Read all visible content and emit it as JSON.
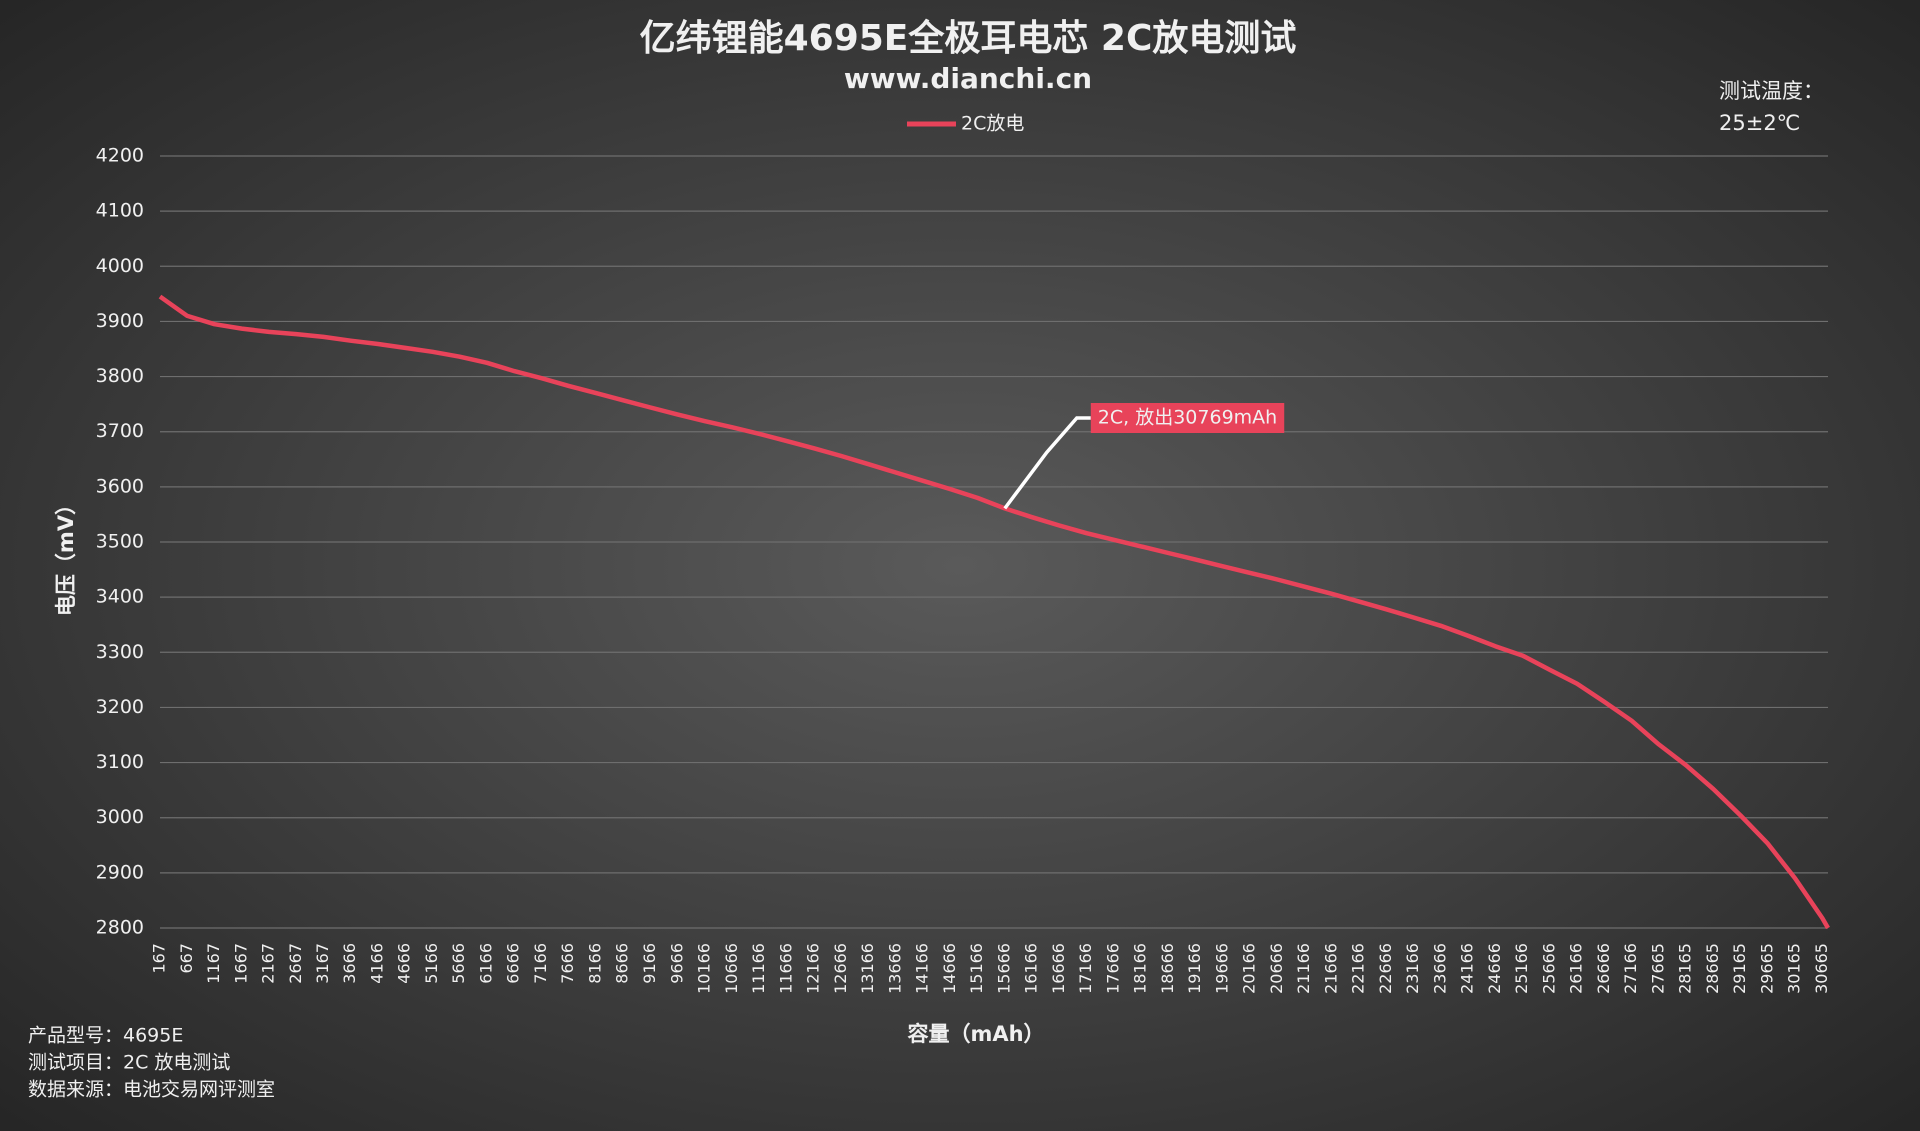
{
  "chart_data": {
    "type": "line",
    "title": "亿纬锂能4695E全极耳电芯 2C放电测试",
    "subtitle": "www.dianchi.cn",
    "x_label": "容量（mAh）",
    "y_label": "电压（mV）",
    "temperature": [
      "测试温度：",
      "25±2℃"
    ],
    "info": [
      "产品型号：4695E",
      "测试项目：2C 放电测试",
      "数据来源：电池交易网评测室"
    ],
    "annotation": "2C, 放出30769mAh",
    "annotation_index": 31,
    "grid": true,
    "legend": "top",
    "xlim": [
      167,
      30769
    ],
    "xticks": [
      167,
      667,
      1167,
      1667,
      2167,
      2667,
      3167,
      3666,
      4166,
      4666,
      5166,
      5666,
      6166,
      6666,
      7166,
      7666,
      8166,
      8666,
      9166,
      9666,
      10166,
      10666,
      11166,
      11666,
      12166,
      12666,
      13166,
      13666,
      14166,
      14666,
      15166,
      15666,
      16166,
      16666,
      17166,
      17666,
      18166,
      18666,
      19166,
      19666,
      20166,
      20666,
      21166,
      21666,
      22166,
      22666,
      23166,
      23666,
      24166,
      24666,
      25166,
      25666,
      26166,
      26666,
      27166,
      27665,
      28165,
      28665,
      29165,
      29665,
      30165,
      30665
    ],
    "ylim": [
      2800,
      4200
    ],
    "yticks": [
      2800,
      2900,
      3000,
      3100,
      3200,
      3300,
      3400,
      3500,
      3600,
      3700,
      3800,
      3900,
      4000,
      4100,
      4200
    ],
    "x": [
      167,
      667,
      1167,
      1667,
      2167,
      2667,
      3167,
      3666,
      4166,
      4666,
      5166,
      5666,
      6166,
      6666,
      7166,
      7666,
      8166,
      8666,
      9166,
      9666,
      10166,
      10666,
      11166,
      11666,
      12166,
      12666,
      13166,
      13666,
      14166,
      14666,
      15166,
      15666,
      16166,
      16666,
      17166,
      17666,
      18166,
      18666,
      19166,
      19666,
      20166,
      20666,
      21166,
      21666,
      22166,
      22666,
      23166,
      23666,
      24166,
      24666,
      25166,
      25666,
      26166,
      26666,
      27166,
      27665,
      28165,
      28665,
      29165,
      29665,
      30165,
      30665,
      30769
    ],
    "series": [
      {
        "name": "2C放电",
        "color": "#e8435a",
        "values": [
          3945,
          3910,
          3895,
          3887,
          3881,
          3877,
          3872,
          3865,
          3859,
          3852,
          3845,
          3836,
          3825,
          3810,
          3797,
          3783,
          3770,
          3757,
          3744,
          3731,
          3719,
          3708,
          3696,
          3683,
          3670,
          3656,
          3641,
          3626,
          3611,
          3596,
          3580,
          3561,
          3545,
          3530,
          3516,
          3504,
          3492,
          3480,
          3468,
          3456,
          3444,
          3432,
          3419,
          3406,
          3392,
          3378,
          3363,
          3348,
          3330,
          3311,
          3294,
          3268,
          3243,
          3210,
          3176,
          3133,
          3095,
          3052,
          3004,
          2953,
          2890,
          2818,
          2800
        ]
      }
    ]
  }
}
